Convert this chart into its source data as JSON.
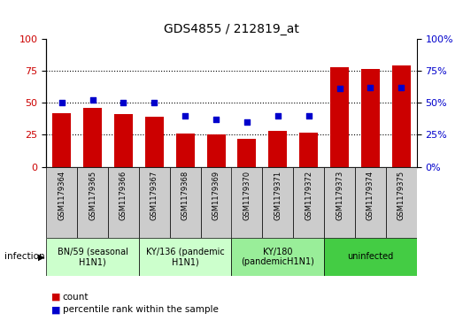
{
  "title": "GDS4855 / 212819_at",
  "samples": [
    "GSM1179364",
    "GSM1179365",
    "GSM1179366",
    "GSM1179367",
    "GSM1179368",
    "GSM1179369",
    "GSM1179370",
    "GSM1179371",
    "GSM1179372",
    "GSM1179373",
    "GSM1179374",
    "GSM1179375"
  ],
  "counts": [
    42,
    46,
    41,
    39,
    26,
    25,
    22,
    28,
    27,
    78,
    76,
    79
  ],
  "percentiles": [
    50,
    52,
    50,
    50,
    40,
    37,
    35,
    40,
    40,
    61,
    62,
    62
  ],
  "bar_color": "#cc0000",
  "dot_color": "#0000cc",
  "ylim_left": [
    0,
    100
  ],
  "ylim_right": [
    0,
    100
  ],
  "yticks_left": [
    0,
    25,
    50,
    75,
    100
  ],
  "yticks_right": [
    0,
    25,
    50,
    75,
    100
  ],
  "groups": [
    {
      "label": "BN/59 (seasonal\nH1N1)",
      "start": 0,
      "end": 3,
      "color": "#ccffcc"
    },
    {
      "label": "KY/136 (pandemic\nH1N1)",
      "start": 3,
      "end": 6,
      "color": "#ccffcc"
    },
    {
      "label": "KY/180\n(pandemicH1N1)",
      "start": 6,
      "end": 9,
      "color": "#99ee99"
    },
    {
      "label": "uninfected",
      "start": 9,
      "end": 12,
      "color": "#44cc44"
    }
  ],
  "sample_cell_color": "#cccccc",
  "infection_label": "infection",
  "legend_count": "count",
  "legend_percentile": "percentile rank within the sample",
  "bg_color": "#ffffff",
  "tick_label_color_left": "#cc0000",
  "tick_label_color_right": "#0000cc"
}
